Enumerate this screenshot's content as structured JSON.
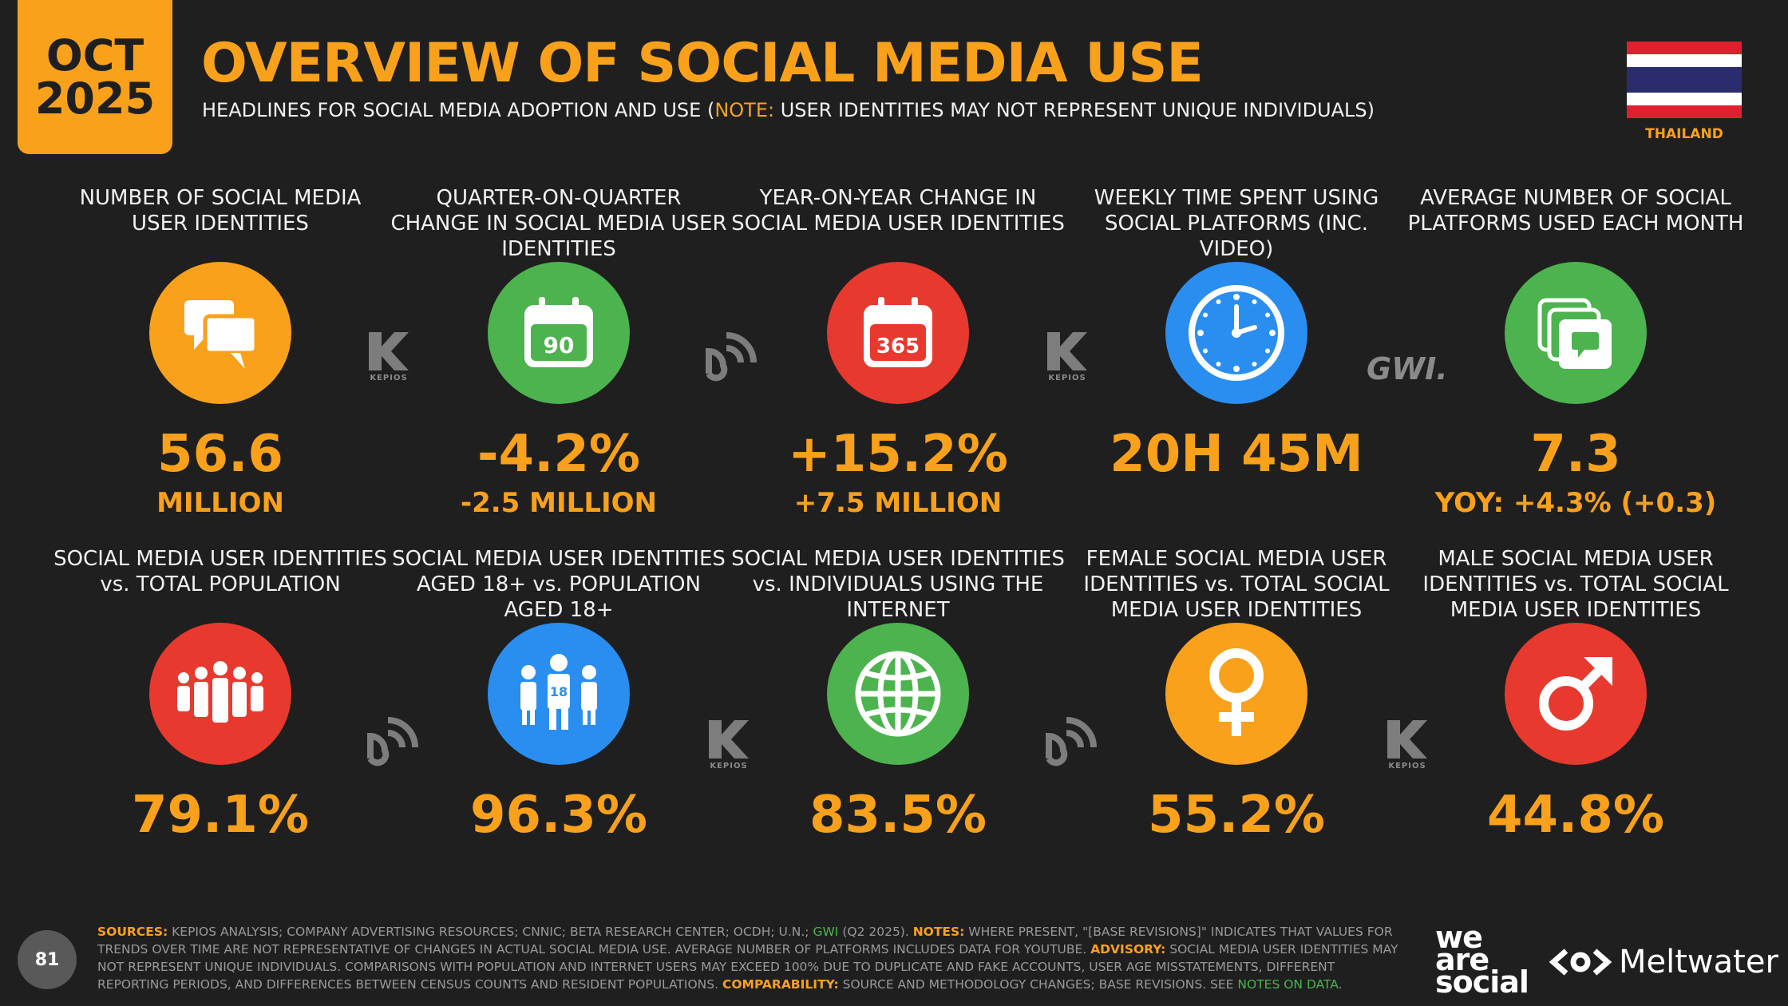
{
  "header": {
    "date_line1": "OCT",
    "date_line2": "2025",
    "title": "OVERVIEW OF SOCIAL MEDIA USE",
    "subtitle_pre": "HEADLINES FOR SOCIAL MEDIA ADOPTION AND USE (",
    "subtitle_note": "NOTE:",
    "subtitle_post": " USER IDENTITIES MAY NOT REPRESENT UNIQUE INDIVIDUALS)",
    "country": "THAILAND"
  },
  "colors": {
    "orange": "#f9a11b",
    "green": "#4db34e",
    "red": "#e8392f",
    "blue": "#2a8ef0",
    "background": "#1f1f1f",
    "flag_red": "#e0202e",
    "flag_blue": "#2a2c6e"
  },
  "row1": [
    {
      "label": "NUMBER OF SOCIAL MEDIA USER IDENTITIES",
      "icon": "speech-bubbles-icon",
      "value": "56.6",
      "sub": "MILLION"
    },
    {
      "label": "QUARTER-ON-QUARTER CHANGE IN SOCIAL MEDIA USER IDENTITIES",
      "icon": "calendar-90-icon",
      "icon_text": "90",
      "value": "-4.2%",
      "sub": "-2.5 MILLION"
    },
    {
      "label": "YEAR-ON-YEAR CHANGE IN SOCIAL MEDIA USER IDENTITIES",
      "icon": "calendar-365-icon",
      "icon_text": "365",
      "value": "+15.2%",
      "sub": "+7.5 MILLION"
    },
    {
      "label": "WEEKLY TIME SPENT USING SOCIAL PLATFORMS (INC. VIDEO)",
      "icon": "clock-icon",
      "value": "20H 45M",
      "sub": ""
    },
    {
      "label": "AVERAGE NUMBER OF SOCIAL PLATFORMS USED EACH MONTH",
      "icon": "stacked-windows-icon",
      "value": "7.3",
      "sub": "YOY: +4.3% (+0.3)"
    }
  ],
  "row2": [
    {
      "label": "SOCIAL MEDIA USER IDENTITIES vs. TOTAL POPULATION",
      "icon": "crowd-icon",
      "value": "79.1%"
    },
    {
      "label": "SOCIAL MEDIA USER IDENTITIES AGED 18+ vs. POPULATION AGED 18+",
      "icon": "people-18-icon",
      "icon_text": "18",
      "value": "96.3%"
    },
    {
      "label": "SOCIAL MEDIA USER IDENTITIES vs. INDIVIDUALS USING THE INTERNET",
      "icon": "globe-icon",
      "value": "83.5%"
    },
    {
      "label": "FEMALE SOCIAL MEDIA USER IDENTITIES vs. TOTAL SOCIAL MEDIA USER IDENTITIES",
      "icon": "female-symbol-icon",
      "value": "55.2%"
    },
    {
      "label": "MALE SOCIAL MEDIA USER IDENTITIES vs. TOTAL SOCIAL MEDIA USER IDENTITIES",
      "icon": "male-symbol-icon",
      "value": "44.8%"
    }
  ],
  "sources": {
    "kepios_text": "KEPIOS",
    "gwi_text": "GWI."
  },
  "footer": {
    "sources_label": "SOURCES:",
    "sources_text": " KEPIOS ANALYSIS; COMPANY ADVERTISING RESOURCES; CNNIC; BETA RESEARCH CENTER; OCDH; U.N.; ",
    "sources_gwi": "GWI",
    "sources_gwi_tail": " (Q2 2025). ",
    "notes_label": "NOTES:",
    "notes_text": " WHERE PRESENT, \"[BASE REVISIONS]\" INDICATES THAT VALUES FOR TRENDS OVER TIME ARE NOT REPRESENTATIVE OF CHANGES IN ACTUAL SOCIAL MEDIA USE. AVERAGE NUMBER OF PLATFORMS INCLUDES DATA FOR YOUTUBE. ",
    "advisory_label": "ADVISORY:",
    "advisory_text": " SOCIAL MEDIA USER IDENTITIES MAY NOT REPRESENT UNIQUE INDIVIDUALS. COMPARISONS WITH POPULATION AND INTERNET USERS MAY EXCEED 100% DUE TO DUPLICATE AND FAKE ACCOUNTS, USER AGE MISSTATEMENTS, DIFFERENT REPORTING PERIODS, AND DIFFERENCES BETWEEN CENSUS COUNTS AND RESIDENT POPULATIONS. ",
    "comparability_label": "COMPARABILITY:",
    "comparability_text": " SOURCE AND METHODOLOGY CHANGES; BASE REVISIONS. SEE ",
    "notes_link": "NOTES ON DATA",
    "notes_end": ".",
    "page_number": "81",
    "logo_line1": "we",
    "logo_line2": "are",
    "logo_line3": "social",
    "meltwater": "Meltwater"
  }
}
